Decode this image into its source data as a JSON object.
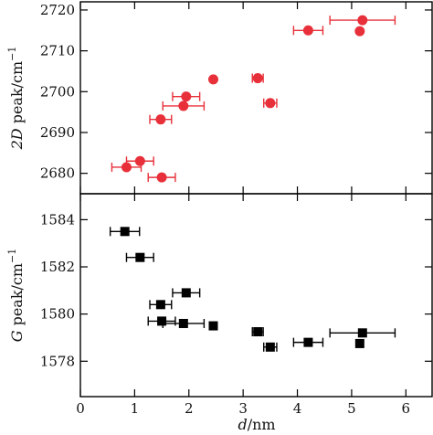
{
  "chart_data": [
    {
      "type": "scatter",
      "panel": "top",
      "xlabel": "",
      "ylabel_var": "2D",
      "ylabel_unit": " peak/cm",
      "ylabel_sup": "−1",
      "ylim": [
        2675,
        2722
      ],
      "xlim": [
        0,
        6.5
      ],
      "yticks": [
        2680,
        2690,
        2700,
        2710,
        2720
      ],
      "ytick_labels": [
        "2680",
        "2690",
        "2700",
        "2710",
        "2720"
      ],
      "marker": "circle",
      "color": "#e8303a",
      "points": [
        {
          "x": 0.85,
          "y": 2681.5,
          "xerr": 0.27
        },
        {
          "x": 1.1,
          "y": 2683.0,
          "xerr": 0.25
        },
        {
          "x": 1.5,
          "y": 2679.0,
          "xerr": 0.25
        },
        {
          "x": 1.48,
          "y": 2693.2,
          "xerr": 0.2
        },
        {
          "x": 1.9,
          "y": 2696.5,
          "xerr": 0.38
        },
        {
          "x": 1.95,
          "y": 2698.8,
          "xerr": 0.25
        },
        {
          "x": 2.45,
          "y": 2703.0,
          "xerr": 0
        },
        {
          "x": 3.27,
          "y": 2703.3,
          "xerr": 0.1
        },
        {
          "x": 3.5,
          "y": 2697.2,
          "xerr": 0.12
        },
        {
          "x": 4.2,
          "y": 2715.0,
          "xerr": 0.27
        },
        {
          "x": 5.15,
          "y": 2714.8,
          "xerr": 0
        },
        {
          "x": 5.2,
          "y": 2717.5,
          "xerr": 0.6
        }
      ]
    },
    {
      "type": "scatter",
      "panel": "bottom",
      "xlabel_var": "d",
      "xlabel_unit": "/nm",
      "ylabel_var": "G",
      "ylabel_unit": " peak/cm",
      "ylabel_sup": "−1",
      "ylim": [
        1576.5,
        1585.1
      ],
      "xlim": [
        0,
        6.5
      ],
      "yticks": [
        1578,
        1580,
        1582,
        1584
      ],
      "ytick_labels": [
        "1578",
        "1580",
        "1582",
        "1584"
      ],
      "xticks": [
        0,
        1,
        2,
        3,
        4,
        5,
        6
      ],
      "xtick_labels": [
        "0",
        "1",
        "2",
        "3",
        "4",
        "5",
        "6"
      ],
      "marker": "square",
      "color": "#000000",
      "points": [
        {
          "x": 0.82,
          "y": 1583.5,
          "xerr": 0.27
        },
        {
          "x": 1.1,
          "y": 1582.4,
          "xerr": 0.25
        },
        {
          "x": 1.48,
          "y": 1580.4,
          "xerr": 0.2
        },
        {
          "x": 1.95,
          "y": 1580.9,
          "xerr": 0.25
        },
        {
          "x": 1.5,
          "y": 1579.7,
          "xerr": 0.25
        },
        {
          "x": 1.9,
          "y": 1579.6,
          "xerr": 0.38
        },
        {
          "x": 2.45,
          "y": 1579.5,
          "xerr": 0
        },
        {
          "x": 3.27,
          "y": 1579.25,
          "xerr": 0.1
        },
        {
          "x": 3.5,
          "y": 1578.6,
          "xerr": 0.12
        },
        {
          "x": 4.2,
          "y": 1578.8,
          "xerr": 0.27
        },
        {
          "x": 5.15,
          "y": 1578.75,
          "xerr": 0
        },
        {
          "x": 5.2,
          "y": 1579.2,
          "xerr": 0.6
        }
      ]
    }
  ]
}
